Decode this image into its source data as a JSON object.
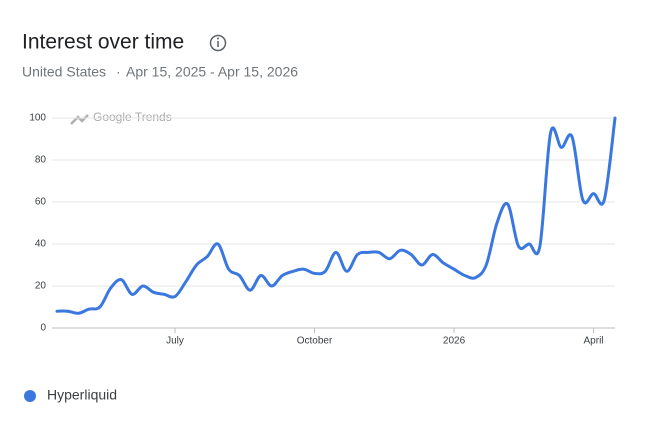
{
  "chart_data": {
    "type": "line",
    "title": "Interest over time",
    "subtitle": "United States",
    "date_range": "Apr 15, 2025 - Apr 15, 2026",
    "watermark": "Google Trends",
    "categories": [
      null,
      null,
      null,
      null,
      null,
      null,
      null,
      null,
      null,
      null,
      null,
      "July",
      null,
      null,
      null,
      null,
      null,
      null,
      null,
      null,
      null,
      null,
      null,
      null,
      "October",
      null,
      null,
      null,
      null,
      null,
      null,
      null,
      null,
      null,
      null,
      null,
      null,
      "2026",
      null,
      null,
      null,
      null,
      null,
      null,
      null,
      null,
      null,
      null,
      null,
      null,
      "April",
      null,
      null
    ],
    "series": [
      {
        "name": "Hyperliquid",
        "color": "#3a78e0",
        "values": [
          8,
          8,
          7,
          9,
          10,
          19,
          23,
          16,
          20,
          17,
          16,
          15,
          22,
          30,
          34,
          40,
          28,
          25,
          18,
          25,
          20,
          25,
          27,
          28,
          26,
          27,
          36,
          27,
          35,
          36,
          36,
          33,
          37,
          35,
          30,
          35,
          31,
          28,
          25,
          24,
          30,
          50,
          59,
          39,
          40,
          39,
          93,
          86,
          91,
          61,
          64,
          61,
          100
        ]
      }
    ],
    "ylim": [
      0,
      100
    ],
    "yticks": [
      0,
      20,
      40,
      60,
      80,
      100
    ],
    "grid": true
  }
}
